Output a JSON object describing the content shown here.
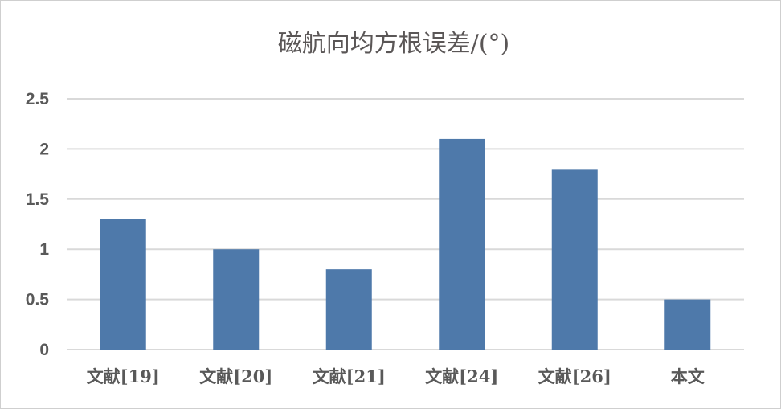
{
  "chart_data": {
    "type": "bar",
    "title": "磁航向均方根误差/(°)",
    "categories": [
      "文献[19]",
      "文献[20]",
      "文献[21]",
      "文献[24]",
      "文献[26]",
      "本文"
    ],
    "values": [
      1.3,
      1.0,
      0.8,
      2.1,
      1.8,
      0.5
    ],
    "ylim": [
      0,
      2.5
    ],
    "yticks": [
      "0",
      "0.5",
      "1",
      "1.5",
      "2",
      "2.5"
    ],
    "grid": true,
    "bar_color": "#4e79aa",
    "xlabel": "",
    "ylabel": ""
  }
}
